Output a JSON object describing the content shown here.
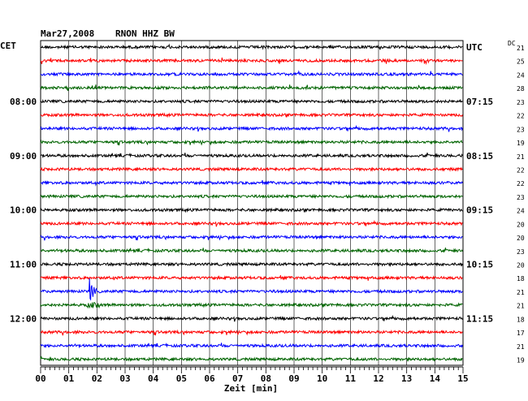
{
  "header": {
    "date": "Mar27,2008",
    "station": "RNON HHZ BW",
    "left_zone": "CET",
    "right_zone": "UTC",
    "dc_label": "DC"
  },
  "chart_data": {
    "type": "line",
    "title": "Mar27,2008   RNON HHZ BW",
    "xlabel": "Zeit [min]",
    "x_ticks": [
      "00",
      "01",
      "02",
      "03",
      "04",
      "05",
      "06",
      "07",
      "08",
      "09",
      "10",
      "11",
      "12",
      "13",
      "14",
      "15"
    ],
    "xlim": [
      0,
      15
    ],
    "trace_count": 24,
    "trace_colors": [
      "#000000",
      "#ff0000",
      "#0000ff",
      "#006400"
    ],
    "left_time_labels": [
      {
        "trace": 4,
        "label": "08:00"
      },
      {
        "trace": 8,
        "label": "09:00"
      },
      {
        "trace": 12,
        "label": "10:00"
      },
      {
        "trace": 16,
        "label": "11:00"
      },
      {
        "trace": 20,
        "label": "12:00"
      }
    ],
    "right_time_labels": [
      {
        "trace": 0,
        "label": "UTC"
      },
      {
        "trace": 4,
        "label": "07:15"
      },
      {
        "trace": 8,
        "label": "08:15"
      },
      {
        "trace": 12,
        "label": "09:15"
      },
      {
        "trace": 16,
        "label": "10:15"
      },
      {
        "trace": 20,
        "label": "11:15"
      }
    ],
    "dc_offsets": [
      "21",
      "25",
      "24",
      "28",
      "23",
      "22",
      "23",
      "19",
      "21",
      "22",
      "22",
      "23",
      "24",
      "20",
      "20",
      "23",
      "20",
      "18",
      "21",
      "21",
      "18",
      "17",
      "21",
      "19"
    ],
    "event": {
      "trace": 18,
      "minute": 1.75,
      "label": ""
    },
    "grid": true
  }
}
